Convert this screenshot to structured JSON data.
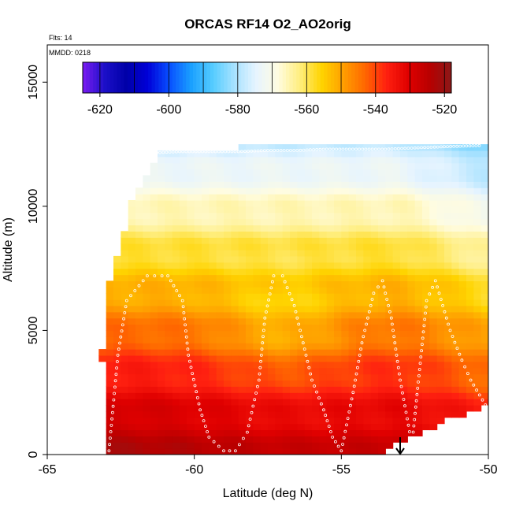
{
  "chart_data": {
    "type": "heatmap",
    "title": "ORCAS RF14 O2_AO2orig",
    "subtitle_flights": "Flts: 14",
    "subtitle_date": "MMDD: 0218",
    "xlabel": "Latitude (deg N)",
    "ylabel": "Altitude (m)",
    "xlim": [
      -65,
      -50
    ],
    "ylim": [
      0,
      16500
    ],
    "x_ticks": [
      -65,
      -60,
      -55,
      -50
    ],
    "x_tick_labels": [
      "-65",
      "-60",
      "-55",
      "-50"
    ],
    "y_ticks": [
      0,
      5000,
      10000,
      15000
    ],
    "y_tick_labels": [
      "0",
      "5000",
      "10000",
      "15000"
    ],
    "colorbar": {
      "range": [
        -625,
        -518
      ],
      "ticks": [
        -620,
        -600,
        -580,
        -560,
        -540,
        -520
      ],
      "tick_labels": [
        "-620",
        "-600",
        "-580",
        "-560",
        "-540",
        "-520"
      ],
      "step": 10,
      "placement": "top-inside",
      "colors": [
        "#7a1cf2",
        "#1c10c8",
        "#0000a8",
        "#0000d8",
        "#0850ff",
        "#1aa0ff",
        "#55ccff",
        "#a8e2ff",
        "#e6f4ff",
        "#fffce0",
        "#ffee80",
        "#ffd400",
        "#ffa000",
        "#ff6800",
        "#ff2010",
        "#e00000",
        "#b80000",
        "#8c1818"
      ]
    },
    "field": {
      "description": "Interpolated O2 curtain, values in per meg",
      "surface_value": -527,
      "top_value": -578,
      "north_edge_lat": -50
    },
    "flight_track": {
      "lat": [
        -62.9,
        -62.6,
        -62.3,
        -61.6,
        -61.1,
        -60.9,
        -60.4,
        -60.2,
        -59.8,
        -59.5,
        -59.0,
        -58.6,
        -58.2,
        -57.8,
        -57.6,
        -57.3,
        -57.0,
        -56.6,
        -56.3,
        -56.0,
        -55.6,
        -55.3,
        -55.0,
        -54.6,
        -54.3,
        -53.9,
        -53.6,
        -53.3,
        -53.0,
        -52.6,
        -52.1,
        -51.8,
        -51.3,
        -50.9,
        -50.6,
        -50.2,
        -50.0
      ],
      "alt": [
        150,
        4000,
        6200,
        7200,
        7200,
        7200,
        6200,
        4000,
        1800,
        700,
        150,
        150,
        900,
        3000,
        5500,
        7200,
        7200,
        6000,
        4500,
        3000,
        1800,
        700,
        150,
        2500,
        4500,
        6500,
        7000,
        5500,
        3000,
        400,
        6200,
        7000,
        5000,
        3800,
        3000,
        2200,
        1800
      ]
    },
    "top_track": {
      "lat": [
        -62.2,
        -61.5,
        -60.5,
        -59.5,
        -58.5,
        -57.5,
        -56.5,
        -55.5,
        -54.5,
        -53.5,
        -52.5,
        -51.5,
        -50.2
      ],
      "alt": [
        12000,
        12150,
        12200,
        12200,
        12200,
        12250,
        12250,
        12300,
        12300,
        12300,
        12350,
        12400,
        12450
      ]
    },
    "marker": {
      "label": "takeoff-landing arrow",
      "lat": -53.0
    }
  }
}
